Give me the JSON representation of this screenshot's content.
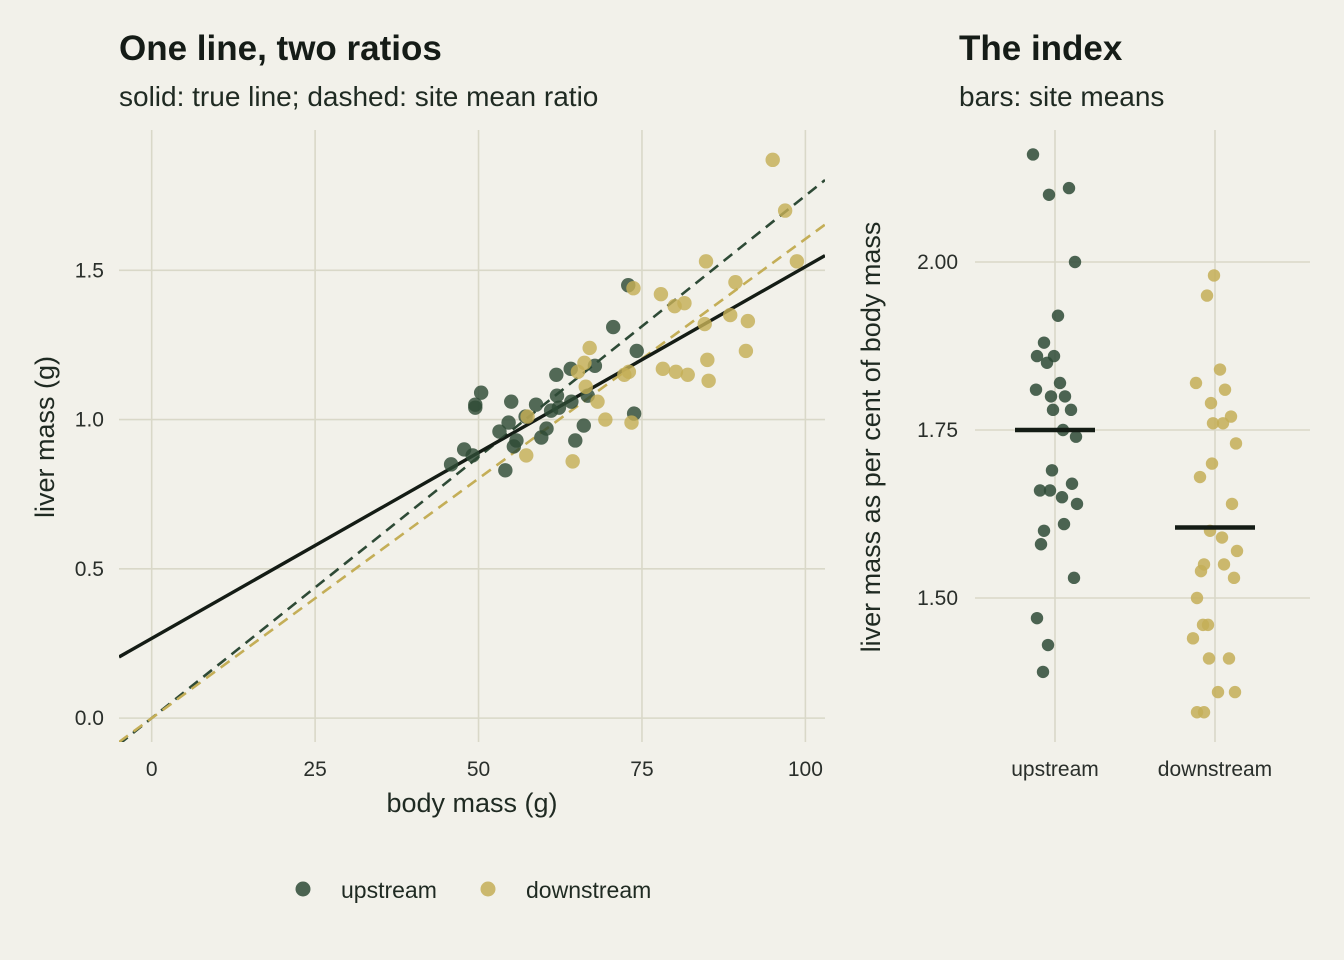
{
  "colors": {
    "upstream": "#2e4a36",
    "downstream": "#c4ae57",
    "true_line": "#141c15",
    "background": "#f2f1ea",
    "grid": "#d9d8c8"
  },
  "legend": {
    "placement": "bottom",
    "items": [
      {
        "label": "upstream",
        "color": "#2e4a36"
      },
      {
        "label": "downstream",
        "color": "#c4ae57"
      }
    ]
  },
  "chart_data": [
    {
      "type": "scatter",
      "title": "One line, two ratios",
      "subtitle": "solid: true line; dashed: site mean ratio",
      "xlabel": "body mass (g)",
      "ylabel": "liver mass (g)",
      "xlim": [
        -5,
        103
      ],
      "ylim": [
        -0.08,
        1.97
      ],
      "xticks": [
        0,
        25,
        50,
        75,
        100
      ],
      "xtick_labels": [
        "0",
        "25",
        "50",
        "75",
        "100"
      ],
      "yticks": [
        0,
        0.5,
        1,
        1.5
      ],
      "ytick_labels": [
        "0.0",
        "0.5",
        "1.0",
        "1.5"
      ],
      "grid": true,
      "series": [
        {
          "name": "upstream",
          "color": "#2e4a36",
          "points": [
            [
              45.8,
              0.85
            ],
            [
              47.8,
              0.9
            ],
            [
              49.1,
              0.88
            ],
            [
              49.5,
              1.04
            ],
            [
              49.5,
              1.05
            ],
            [
              50.4,
              1.09
            ],
            [
              53.2,
              0.96
            ],
            [
              54.1,
              0.83
            ],
            [
              54.6,
              0.99
            ],
            [
              55.0,
              1.06
            ],
            [
              55.4,
              0.91
            ],
            [
              55.8,
              0.93
            ],
            [
              57.2,
              1.01
            ],
            [
              58.8,
              1.05
            ],
            [
              59.6,
              0.94
            ],
            [
              60.4,
              0.97
            ],
            [
              61.1,
              1.03
            ],
            [
              61.9,
              1.15
            ],
            [
              62.0,
              1.08
            ],
            [
              62.3,
              1.04
            ],
            [
              64.1,
              1.17
            ],
            [
              64.2,
              1.06
            ],
            [
              64.8,
              0.93
            ],
            [
              66.1,
              0.98
            ],
            [
              66.7,
              1.08
            ],
            [
              67.8,
              1.18
            ],
            [
              70.6,
              1.31
            ],
            [
              72.9,
              1.45
            ],
            [
              73.8,
              1.02
            ],
            [
              74.2,
              1.23
            ]
          ]
        },
        {
          "name": "downstream",
          "color": "#c4ae57",
          "points": [
            [
              57.3,
              0.88
            ],
            [
              57.5,
              1.01
            ],
            [
              64.4,
              0.86
            ],
            [
              65.2,
              1.16
            ],
            [
              66.2,
              1.19
            ],
            [
              66.4,
              1.11
            ],
            [
              67.0,
              1.24
            ],
            [
              68.2,
              1.06
            ],
            [
              69.4,
              1.0
            ],
            [
              72.3,
              1.15
            ],
            [
              73.0,
              1.16
            ],
            [
              73.4,
              0.99
            ],
            [
              73.7,
              1.44
            ],
            [
              77.9,
              1.42
            ],
            [
              78.2,
              1.17
            ],
            [
              80.0,
              1.38
            ],
            [
              80.2,
              1.16
            ],
            [
              81.5,
              1.39
            ],
            [
              82.0,
              1.15
            ],
            [
              84.6,
              1.32
            ],
            [
              84.8,
              1.53
            ],
            [
              85.0,
              1.2
            ],
            [
              85.2,
              1.13
            ],
            [
              88.5,
              1.35
            ],
            [
              89.3,
              1.46
            ],
            [
              90.9,
              1.23
            ],
            [
              91.2,
              1.33
            ],
            [
              95.0,
              1.87
            ],
            [
              96.9,
              1.7
            ],
            [
              98.7,
              1.53
            ]
          ]
        }
      ],
      "lines": [
        {
          "name": "true line",
          "style": "solid",
          "color": "#141c15",
          "intercept": 0.267,
          "slope": 0.01245
        },
        {
          "name": "upstream mean ratio",
          "style": "dashed",
          "color": "#2e4a36",
          "intercept": 0,
          "slope": 0.0175
        },
        {
          "name": "downstream mean ratio",
          "style": "dashed",
          "color": "#c4ae57",
          "intercept": 0,
          "slope": 0.01605
        }
      ]
    },
    {
      "type": "scatter",
      "title": "The index",
      "subtitle": "bars: site means",
      "xlabel": "",
      "ylabel": "liver mass as per cent of body mass",
      "categories": [
        "upstream",
        "downstream"
      ],
      "ylim": [
        1.3,
        2.2
      ],
      "yticks": [
        1.5,
        1.75,
        2.0
      ],
      "ytick_labels": [
        "1.50",
        "1.75",
        "2.00"
      ],
      "grid": true,
      "series": [
        {
          "name": "upstream",
          "color": "#2e4a36",
          "mean": 1.75,
          "values": [
            2.16,
            2.11,
            2.1,
            2.0,
            1.92,
            1.88,
            1.86,
            1.86,
            1.85,
            1.82,
            1.81,
            1.8,
            1.8,
            1.78,
            1.78,
            1.75,
            1.74,
            1.69,
            1.66,
            1.67,
            1.66,
            1.65,
            1.64,
            1.6,
            1.61,
            1.58,
            1.53,
            1.47,
            1.43,
            1.39
          ]
        },
        {
          "name": "downstream",
          "color": "#c4ae57",
          "mean": 1.605,
          "values": [
            1.98,
            1.95,
            1.84,
            1.82,
            1.81,
            1.79,
            1.77,
            1.76,
            1.76,
            1.73,
            1.7,
            1.68,
            1.64,
            1.6,
            1.59,
            1.57,
            1.55,
            1.55,
            1.54,
            1.53,
            1.5,
            1.46,
            1.46,
            1.44,
            1.41,
            1.41,
            1.36,
            1.36,
            1.33,
            1.33
          ]
        }
      ]
    }
  ]
}
